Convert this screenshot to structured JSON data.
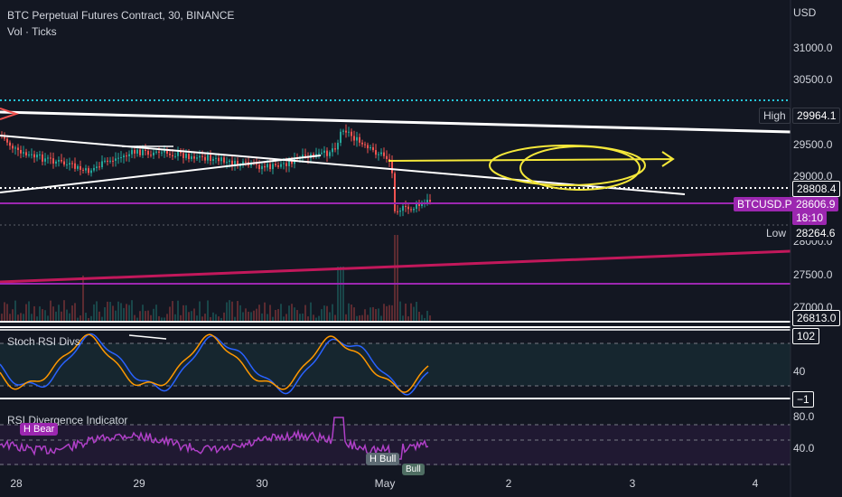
{
  "header": {
    "symbol_title": "BTC Perpetual Futures Contract, 30, BINANCE",
    "volume_label": "Vol · Ticks"
  },
  "price_axis": {
    "currency": "USD",
    "ticks": [
      "31000.0",
      "30500.0",
      "29500.0",
      "29000.0",
      "28000.0",
      "27500.0",
      "27000.0"
    ]
  },
  "tags": {
    "high_label": "High",
    "high_value": "29964.1",
    "dotted_level": "28808.4",
    "symbol_label": "BTCUSD.P",
    "last_price": "28606.9",
    "countdown": "18:10",
    "low_label": "Low",
    "low_value": "28264.6",
    "bottom_level": "26813.0"
  },
  "stoch_pane": {
    "title": "Stoch RSI Divs",
    "ticks": [
      "102",
      "40",
      "−1"
    ]
  },
  "rsi_pane": {
    "title": "RSI Divergence Indicator",
    "ticks": [
      "80.0",
      "40.0"
    ],
    "bubbles": [
      "H Bear",
      "H Bull",
      "Bull"
    ]
  },
  "time_axis": {
    "labels": [
      "28",
      "29",
      "30",
      "May",
      "2",
      "3",
      "4"
    ]
  },
  "colors": {
    "background": "#131722",
    "up": "#26a69a",
    "down": "#ef5350",
    "trendline": "#ffffff",
    "annotation": "#f5e83a",
    "purple": "#9c27b0",
    "teal": "#26c6da"
  }
}
